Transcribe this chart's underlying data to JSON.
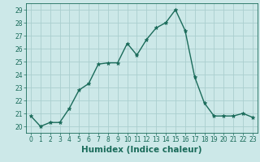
{
  "title": "",
  "xlabel": "Humidex (Indice chaleur)",
  "ylabel": "",
  "x": [
    0,
    1,
    2,
    3,
    4,
    5,
    6,
    7,
    8,
    9,
    10,
    11,
    12,
    13,
    14,
    15,
    16,
    17,
    18,
    19,
    20,
    21,
    22,
    23
  ],
  "y": [
    20.8,
    20.0,
    20.3,
    20.3,
    21.4,
    22.8,
    23.3,
    24.8,
    24.9,
    24.9,
    26.4,
    25.5,
    26.7,
    27.6,
    28.0,
    29.0,
    27.4,
    23.8,
    21.8,
    20.8,
    20.8,
    20.8,
    21.0,
    20.7
  ],
  "line_color": "#1a6b5a",
  "marker": "*",
  "marker_size": 3.5,
  "bg_color": "#cce8e8",
  "grid_color": "#aacece",
  "ylim": [
    19.5,
    29.5
  ],
  "xlim": [
    -0.5,
    23.5
  ],
  "yticks": [
    20,
    21,
    22,
    23,
    24,
    25,
    26,
    27,
    28,
    29
  ],
  "xticks": [
    0,
    1,
    2,
    3,
    4,
    5,
    6,
    7,
    8,
    9,
    10,
    11,
    12,
    13,
    14,
    15,
    16,
    17,
    18,
    19,
    20,
    21,
    22,
    23
  ],
  "tick_label_fontsize": 5.5,
  "xlabel_fontsize": 7.5,
  "linewidth": 1.0
}
